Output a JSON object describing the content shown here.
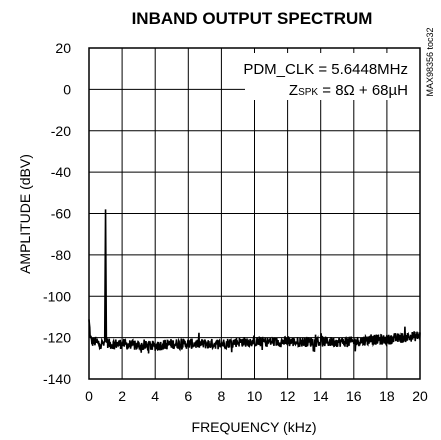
{
  "chart_data": {
    "type": "line",
    "title": "INBAND OUTPUT SPECTRUM",
    "xlabel": "FREQUENCY (kHz)",
    "ylabel": "AMPLITUDE (dBV)",
    "xlim": [
      0,
      20
    ],
    "ylim": [
      -140,
      20
    ],
    "x_ticks": [
      "0",
      "2",
      "4",
      "6",
      "8",
      "10",
      "12",
      "14",
      "16",
      "18",
      "20"
    ],
    "y_ticks": [
      "20",
      "0",
      "-20",
      "-40",
      "-60",
      "-80",
      "-100",
      "-120",
      "-140"
    ],
    "grid": true,
    "line_color": "#000000",
    "annotation": {
      "line1": "PDM_CLK = 5.6448MHz",
      "line2_prefix": "Z",
      "line2_sub": "SPK",
      "line2_suffix": " = 8Ω + 68µH"
    },
    "figure_code": "MAX98356 toc32",
    "series": [
      {
        "x": [
          0.0,
          0.1,
          0.2,
          0.4,
          0.6,
          0.8,
          0.95,
          1.0,
          1.05,
          1.2,
          1.5,
          2,
          3,
          4,
          5,
          6,
          7,
          8,
          9,
          10,
          11,
          12,
          13,
          14,
          15,
          16,
          17,
          18,
          19,
          20
        ],
        "y": [
          -112,
          -121,
          -122,
          -122,
          -123,
          -123,
          -122,
          -58,
          -122,
          -123,
          -123,
          -123,
          -124,
          -124,
          -123,
          -123,
          -123,
          -123,
          -122,
          -122,
          -122,
          -122,
          -122,
          -122,
          -122,
          -122,
          -121,
          -121,
          -120,
          -119
        ]
      }
    ]
  }
}
